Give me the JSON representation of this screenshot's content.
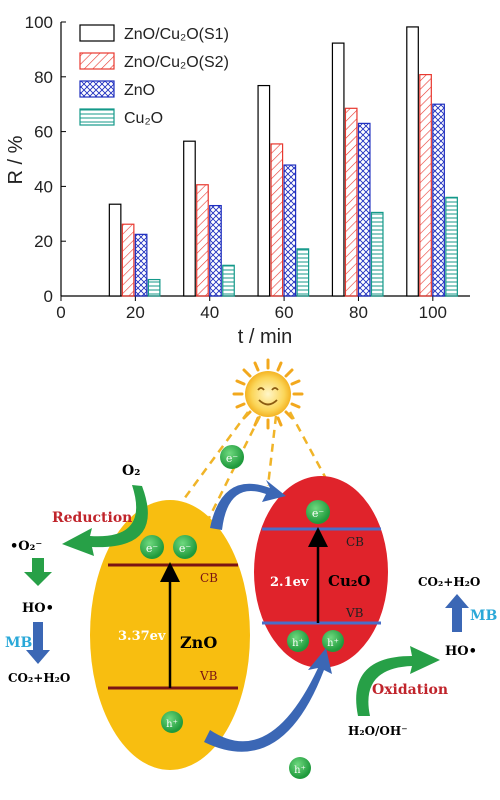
{
  "chart_data": {
    "type": "bar",
    "title": "",
    "xlabel": "t / min",
    "ylabel": "R / %",
    "categories": [
      "20",
      "40",
      "60",
      "80",
      "100"
    ],
    "x_tick_labels": [
      "0",
      "20",
      "40",
      "60",
      "80",
      "100"
    ],
    "y_tick_labels": [
      "0",
      "20",
      "40",
      "60",
      "80",
      "100"
    ],
    "ylim": [
      0,
      100
    ],
    "xlim": [
      0,
      110
    ],
    "grid": false,
    "legend_position": "top-left",
    "series": [
      {
        "name": "ZnO/Cu₂O(S1)",
        "values": [
          33.5,
          56.5,
          76.8,
          92.3,
          98.2
        ],
        "color": "#000000",
        "pattern": "none"
      },
      {
        "name": "ZnO/Cu₂O(S2)",
        "values": [
          26.2,
          40.6,
          55.5,
          68.5,
          80.8
        ],
        "color": "#e8382f",
        "pattern": "diagonal"
      },
      {
        "name": "ZnO",
        "values": [
          22.5,
          33.0,
          47.8,
          63.0,
          70.0
        ],
        "color": "#1f2fbf",
        "pattern": "crosshatch"
      },
      {
        "name": "Cu₂O",
        "values": [
          6.0,
          11.2,
          17.2,
          30.5,
          36.0
        ],
        "color": "#14998a",
        "pattern": "horizontal"
      }
    ]
  },
  "scheme": {
    "electron": "e⁻",
    "hole": "h⁺",
    "o2": "O₂",
    "superoxide": "•O₂⁻",
    "reduction": "Reduction",
    "oxidation": "Oxidation",
    "ho_left": "HO•",
    "ho_right": "HO•",
    "mb_left": "MB",
    "mb_right": "MB",
    "co2_left": "CO₂+H₂O",
    "co2_right": "CO₂+H₂O",
    "water": "H₂O/OH⁻",
    "zno": "ZnO",
    "zno_gap": "3.37ev",
    "cu2o": "Cu₂O",
    "cu2o_gap": "2.1ev",
    "cb": "CB",
    "vb": "VB",
    "colors": {
      "zno_fill": "#f8be10",
      "cu2o_fill": "#e0232b",
      "band_dark": "#7a1414",
      "band_blue": "#4a6ec8",
      "particle": "#2fae4b",
      "arrow_blue": "#3b67b5",
      "arrow_green": "#27a047",
      "reduction_text": "#c0242b",
      "mb_text": "#2aa8d8"
    }
  }
}
